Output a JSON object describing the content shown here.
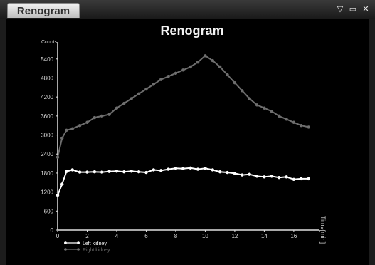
{
  "window": {
    "tab_label": "Renogram",
    "controls": [
      "chevron-down-icon",
      "restore-icon",
      "close-icon"
    ]
  },
  "chart_data": {
    "type": "line",
    "title": "Renogram",
    "ylabel": "Counts",
    "xlabel": "Time[min]",
    "xlim": [
      0,
      17.5
    ],
    "ylim": [
      0,
      5800
    ],
    "xticks": [
      0,
      2,
      4,
      6,
      8,
      10,
      12,
      14,
      16
    ],
    "yticks": [
      0,
      600,
      1200,
      1800,
      2400,
      3000,
      3600,
      4200,
      4800,
      5400
    ],
    "grid": false,
    "legend_position": "bottom-left",
    "series": [
      {
        "name": "Left kidney",
        "color": "#ffffff",
        "marker": "circle",
        "x": [
          0,
          0.3,
          0.6,
          1,
          1.5,
          2,
          2.5,
          3,
          3.5,
          4,
          4.5,
          5,
          5.5,
          6,
          6.5,
          7,
          7.5,
          8,
          8.5,
          9,
          9.5,
          10,
          10.5,
          11,
          11.5,
          12,
          12.5,
          13,
          13.5,
          14,
          14.5,
          15,
          15.5,
          16,
          16.5,
          17
        ],
        "y": [
          1100,
          1450,
          1850,
          1900,
          1830,
          1830,
          1840,
          1830,
          1850,
          1860,
          1840,
          1860,
          1840,
          1820,
          1900,
          1880,
          1920,
          1950,
          1940,
          1960,
          1920,
          1950,
          1900,
          1840,
          1820,
          1790,
          1740,
          1760,
          1700,
          1680,
          1700,
          1660,
          1680,
          1600,
          1620,
          1620
        ]
      },
      {
        "name": "Right kidney",
        "color": "#6e6e6e",
        "marker": "circle",
        "x": [
          0,
          0.3,
          0.6,
          1,
          1.5,
          2,
          2.5,
          3,
          3.5,
          4,
          4.5,
          5,
          5.5,
          6,
          6.5,
          7,
          7.5,
          8,
          8.5,
          9,
          9.5,
          10,
          10.5,
          11,
          11.5,
          12,
          12.5,
          13,
          13.5,
          14,
          14.5,
          15,
          15.5,
          16,
          16.5,
          17
        ],
        "y": [
          2300,
          2900,
          3150,
          3200,
          3300,
          3400,
          3550,
          3600,
          3650,
          3850,
          4000,
          4150,
          4300,
          4450,
          4600,
          4750,
          4850,
          4950,
          5050,
          5150,
          5300,
          5500,
          5350,
          5150,
          4900,
          4650,
          4400,
          4150,
          3950,
          3850,
          3750,
          3600,
          3500,
          3400,
          3300,
          3250
        ]
      }
    ]
  }
}
